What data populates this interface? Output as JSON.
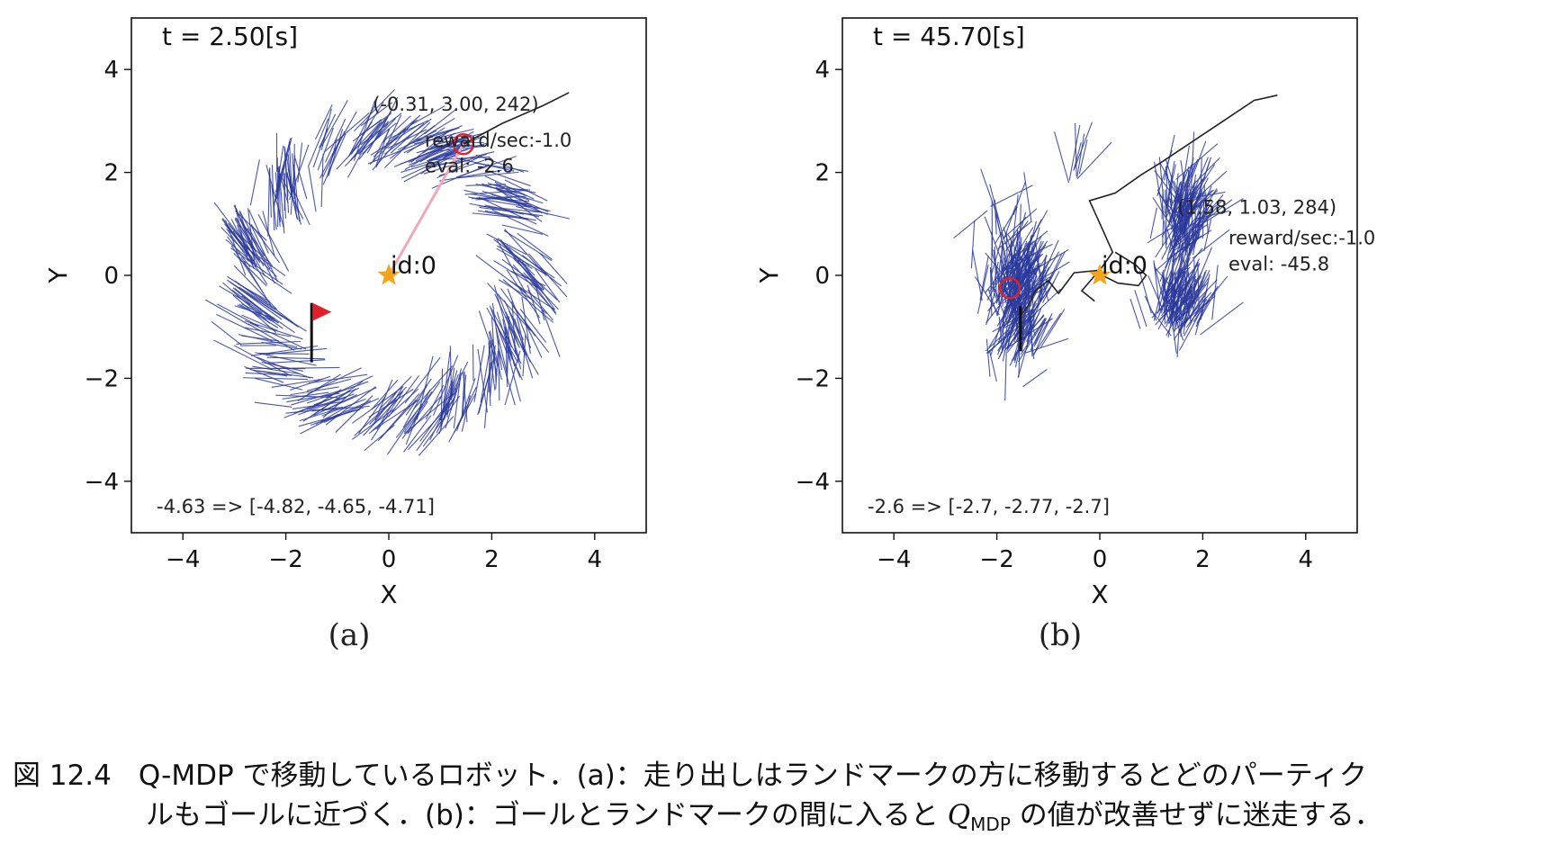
{
  "chart_data": [
    {
      "type": "scatter",
      "panel": "(a)",
      "time_label": "t = 2.50[s]",
      "xlabel": "X",
      "ylabel": "Y",
      "xlim": [
        -5,
        5
      ],
      "ylim": [
        -5,
        5
      ],
      "xticks": [
        -4,
        -2,
        0,
        2,
        4
      ],
      "yticks": [
        -4,
        -2,
        0,
        2,
        4
      ],
      "tick_labels": [
        "−4",
        "−2",
        "0",
        "2",
        "4"
      ],
      "landmark": {
        "label": "id:0",
        "x": 0,
        "y": 0
      },
      "robot": {
        "x": 1.45,
        "y": 2.55
      },
      "goal_flag": {
        "x": -1.5,
        "y": -1.2
      },
      "pose_text": "(-0.31, 3.00, 242)",
      "reward_text": "reward/sec:-1.0",
      "eval_text": "eval: -2.6",
      "q_text": "-4.63 => [-4.82, -4.65, -4.71]",
      "trajectory": [
        [
          1.45,
          2.55
        ],
        [
          2.2,
          2.95
        ],
        [
          3.0,
          3.3
        ],
        [
          3.5,
          3.55
        ]
      ],
      "particle_ring": {
        "radius": 3.1,
        "clusters": 24,
        "angle_jitter": 0.18,
        "radial_jitter": 0.35
      }
    },
    {
      "type": "scatter",
      "panel": "(b)",
      "time_label": "t = 45.70[s]",
      "xlabel": "X",
      "ylabel": "Y",
      "xlim": [
        -5,
        5
      ],
      "ylim": [
        -5,
        5
      ],
      "xticks": [
        -4,
        -2,
        0,
        2,
        4
      ],
      "yticks": [
        -4,
        -2,
        0,
        2,
        4
      ],
      "tick_labels": [
        "−4",
        "−2",
        "0",
        "2",
        "4"
      ],
      "landmark": {
        "label": "id:0",
        "x": 0,
        "y": 0
      },
      "robot": {
        "x": -1.75,
        "y": -0.25
      },
      "pose_text": "(1.58, 1.03, 284)",
      "reward_text": "reward/sec:-1.0",
      "eval_text": "eval: -45.8",
      "q_text": "-2.6 => [-2.7, -2.77, -2.7]",
      "trajectory": [
        [
          3.45,
          3.5
        ],
        [
          3.0,
          3.4
        ],
        [
          2.4,
          3.0
        ],
        [
          1.8,
          2.6
        ],
        [
          1.2,
          2.2
        ],
        [
          0.8,
          1.95
        ],
        [
          0.3,
          1.6
        ],
        [
          -0.2,
          1.45
        ],
        [
          0.05,
          0.9
        ],
        [
          0.25,
          0.45
        ],
        [
          0.0,
          0.1
        ],
        [
          -0.5,
          0.05
        ],
        [
          -0.8,
          -0.35
        ],
        [
          -1.0,
          -0.1
        ],
        [
          -1.25,
          -0.3
        ],
        [
          -1.4,
          -0.6
        ],
        [
          -1.55,
          -0.8
        ]
      ],
      "trajectory_branch": [
        [
          0.3,
          0.45
        ],
        [
          0.7,
          0.2
        ],
        [
          0.9,
          0.0
        ],
        [
          0.75,
          -0.2
        ],
        [
          0.35,
          -0.15
        ],
        [
          -0.05,
          0.05
        ],
        [
          -0.35,
          -0.3
        ],
        [
          -0.1,
          -0.5
        ]
      ],
      "particle_clouds": [
        {
          "cx": -1.7,
          "cy": -0.6,
          "sx": 0.45,
          "sy": 1.1,
          "n": 260
        },
        {
          "cx": 1.55,
          "cy": 0.8,
          "sx": 0.35,
          "sy": 0.75,
          "n": 150
        },
        {
          "cx": 1.45,
          "cy": -0.8,
          "sx": 0.4,
          "sy": 0.45,
          "n": 120
        },
        {
          "cx": -0.5,
          "cy": 1.9,
          "sx": 0.12,
          "sy": 0.15,
          "n": 8
        }
      ]
    }
  ],
  "sublabels": {
    "a": "(a)",
    "b": "(b)"
  },
  "caption": {
    "number": "図 12.4",
    "line1": "Q-MDP で移動しているロボット．(a)：走り出しはランドマークの方に移動するとどのパーティク",
    "line2_pre": "ルもゴールに近づく．(b)：ゴールとランドマークの間に入ると",
    "qmdp_main": "Q",
    "qmdp_sub": "MDP",
    "line2_post": "の値が改善せずに迷走する．"
  },
  "colors": {
    "particle": "#2b3a9b",
    "trajectory": "#222222",
    "robot": "#e0202a",
    "landmark": "#f2a51a",
    "sensor_line": "#f0a9b8",
    "flag": "#e0202a"
  }
}
